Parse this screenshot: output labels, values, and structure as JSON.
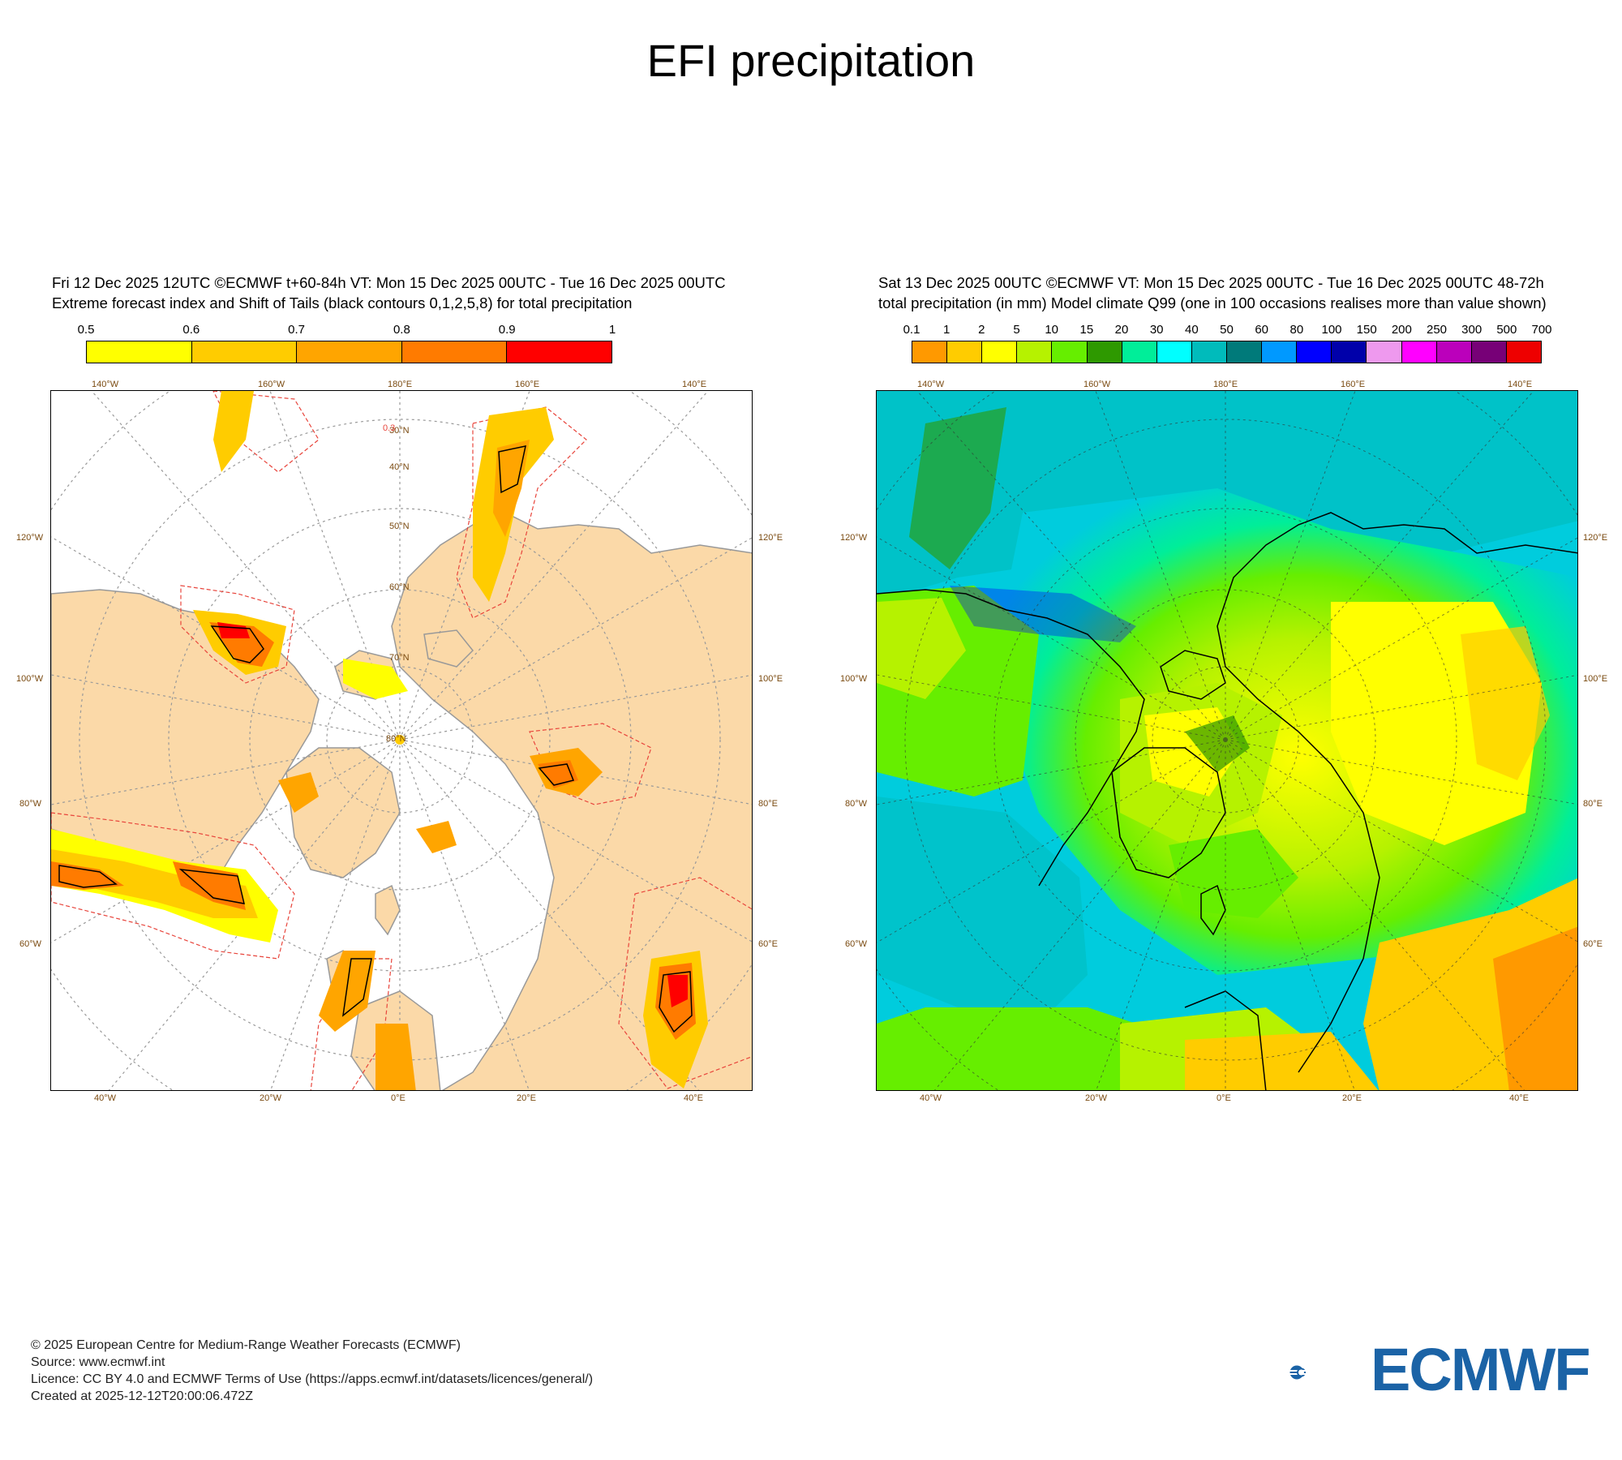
{
  "page": {
    "title": "EFI precipitation"
  },
  "left_panel": {
    "header_line1": "Fri 12 Dec 2025 12UTC ©ECMWF t+60-84h  VT: Mon 15 Dec 2025 00UTC - Tue 16 Dec 2025 00UTC",
    "header_line2": "Extreme forecast index and Shift of Tails (black contours 0,1,2,5,8) for total precipitation",
    "colorbar_labels": [
      "0.5",
      "0.6",
      "0.7",
      "0.8",
      "0.9",
      "1"
    ],
    "colorbar_colors": [
      "#ffff00",
      "#ffcc00",
      "#ffa500",
      "#ff7b00",
      "#ff0000"
    ],
    "land_color": "#fbd9a8",
    "contour_label": "0.3"
  },
  "right_panel": {
    "header_line1": "Sat 13 Dec 2025 00UTC ©ECMWF VT: Mon 15 Dec 2025 00UTC - Tue 16 Dec 2025 00UTC    48-72h",
    "header_line2": "total precipitation (in mm)  Model climate Q99 (one in 100 occasions realises more than value shown)",
    "colorbar_labels": [
      "0.1",
      "1",
      "2",
      "5",
      "10",
      "15",
      "20",
      "30",
      "40",
      "50",
      "60",
      "80",
      "100",
      "150",
      "200",
      "250",
      "300",
      "500",
      "700"
    ],
    "colorbar_colors": [
      "#ff9900",
      "#ffcc00",
      "#ffff00",
      "#b6f200",
      "#66ee00",
      "#2e9900",
      "#00ee99",
      "#00ffff",
      "#00bbbb",
      "#007a7a",
      "#0099ff",
      "#0000ff",
      "#0000aa",
      "#ee99ee",
      "#ff00ff",
      "#bb00bb",
      "#770077",
      "#ee0000"
    ]
  },
  "map_labels": {
    "top": [
      "140°W",
      "160°W",
      "180°E",
      "160°E",
      "140°E"
    ],
    "bottom": [
      "40°W",
      "20°W",
      "0°E",
      "20°E",
      "40°E"
    ],
    "left": [
      "120°W",
      "100°W",
      "80°W",
      "60°W"
    ],
    "right": [
      "120°E",
      "100°E",
      "80°E",
      "60°E"
    ],
    "lat": [
      "30°N",
      "40°N",
      "50°N",
      "60°N",
      "70°N",
      "80°N"
    ]
  },
  "footer": {
    "line1": "© 2025 European Centre for Medium-Range Weather Forecasts (ECMWF)",
    "line2": "Source: www.ecmwf.int",
    "line3": "Licence: CC BY 4.0 and ECMWF Terms of Use (https://apps.ecmwf.int/datasets/licences/general/)",
    "line4": "Created at 2025-12-12T20:00:06.472Z"
  },
  "logo": {
    "text": "ECMWF",
    "color": "#1b63a6"
  }
}
